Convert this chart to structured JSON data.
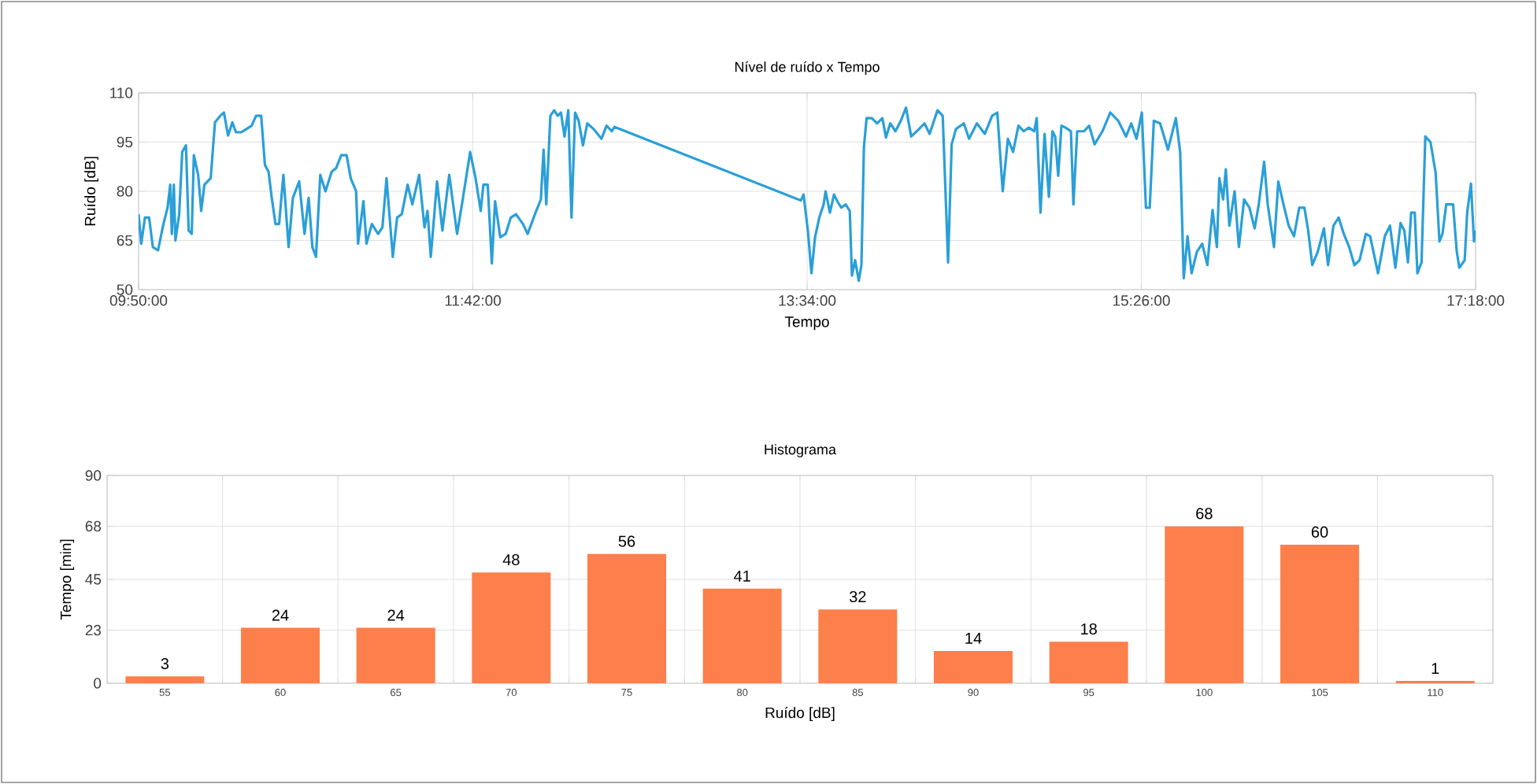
{
  "chart_data": [
    {
      "type": "line",
      "title": "Nível de ruído x Tempo",
      "xlabel": "Tempo",
      "ylabel": "Ruído [dB]",
      "xlim": [
        9.8333,
        17.3
      ],
      "ylim": [
        50,
        110
      ],
      "xticks": [
        {
          "value": 9.8333,
          "label": "09:50:00"
        },
        {
          "value": 11.7,
          "label": "11:42:00"
        },
        {
          "value": 13.5667,
          "label": "13:34:00"
        },
        {
          "value": 15.4333,
          "label": "15:26:00"
        },
        {
          "value": 17.3,
          "label": "17:18:00"
        }
      ],
      "yticks": [
        50,
        65,
        80,
        95,
        110
      ],
      "grid": true,
      "series": [
        {
          "color": "#2a9fd8",
          "x": [
            9.8333,
            9.848,
            9.869,
            9.892,
            9.913,
            9.942,
            9.972,
            9.995,
            10.01,
            10.019,
            10.03,
            10.039,
            10.06,
            10.077,
            10.098,
            10.113,
            10.13,
            10.142,
            10.166,
            10.183,
            10.201,
            10.236,
            10.26,
            10.289,
            10.31,
            10.333,
            10.357,
            10.377,
            10.407,
            10.436,
            10.465,
            10.489,
            10.518,
            10.539,
            10.559,
            10.577,
            10.598,
            10.618,
            10.642,
            10.671,
            10.695,
            10.73,
            10.76,
            10.783,
            10.804,
            10.824,
            10.848,
            10.877,
            10.912,
            10.936,
            10.965,
            10.995,
            11.018,
            11.048,
            11.059,
            11.089,
            11.106,
            11.136,
            11.171,
            11.195,
            11.218,
            11.253,
            11.277,
            11.303,
            11.336,
            11.362,
            11.4,
            11.43,
            11.447,
            11.465,
            11.5,
            11.53,
            11.568,
            11.612,
            11.642,
            11.685,
            11.715,
            11.744,
            11.759,
            11.783,
            11.806,
            11.824,
            11.853,
            11.883,
            11.912,
            11.941,
            11.98,
            12.006,
            12.05,
            12.08,
            12.095,
            12.11,
            12.133,
            12.154,
            12.174,
            12.192,
            12.212,
            12.233,
            12.251,
            12.271,
            12.291,
            12.315,
            12.339,
            12.374,
            12.418,
            12.447,
            12.476,
            12.491,
            13.532,
            13.547,
            13.571,
            13.591,
            13.611,
            13.635,
            13.659,
            13.67,
            13.694,
            13.717,
            13.738,
            13.758,
            13.782,
            13.805,
            13.817,
            13.835,
            13.855,
            13.87,
            13.884,
            13.899,
            13.928,
            13.958,
            13.987,
            14.007,
            14.031,
            14.06,
            14.09,
            14.119,
            14.148,
            14.192,
            14.222,
            14.251,
            14.295,
            14.324,
            14.354,
            14.374,
            14.398,
            14.442,
            14.471,
            14.515,
            14.559,
            14.6,
            14.629,
            14.659,
            14.688,
            14.717,
            14.747,
            14.776,
            14.805,
            14.835,
            14.849,
            14.87,
            14.893,
            14.917,
            14.937,
            14.952,
            14.969,
            14.987,
            15.01,
            15.04,
            15.054,
            15.075,
            15.113,
            15.142,
            15.172,
            15.216,
            15.26,
            15.304,
            15.348,
            15.377,
            15.406,
            15.436,
            15.459,
            15.48,
            15.503,
            15.538,
            15.582,
            15.626,
            15.65,
            15.67,
            15.691,
            15.714,
            15.743,
            15.773,
            15.802,
            15.831,
            15.855,
            15.869,
            15.89,
            15.905,
            15.925,
            15.954,
            15.978,
            16.007,
            16.037,
            16.066,
            16.089,
            16.119,
            16.139,
            16.174,
            16.198,
            16.227,
            16.256,
            16.286,
            16.315,
            16.344,
            16.365,
            16.388,
            16.418,
            16.453,
            16.476,
            16.506,
            16.535,
            16.564,
            16.594,
            16.623,
            16.652,
            16.687,
            16.711,
            16.755,
            16.793,
            16.822,
            16.852,
            16.881,
            16.902,
            16.922,
            16.94,
            16.96,
            16.975,
            16.998,
            17.019,
            17.048,
            17.077,
            17.098,
            17.115,
            17.136,
            17.174,
            17.195,
            17.209,
            17.239,
            17.253,
            17.274,
            17.291,
            17.3
          ],
          "values": [
            73,
            64,
            72,
            72,
            63,
            62,
            70,
            75,
            82,
            67,
            82,
            65,
            73,
            92,
            94,
            68,
            67,
            91,
            85,
            74,
            82,
            84,
            101,
            103,
            104,
            97,
            101,
            98,
            98,
            99,
            100,
            103,
            103,
            88,
            86,
            78,
            70,
            70,
            85,
            63,
            78,
            83,
            67,
            78,
            63,
            60,
            85,
            80,
            86,
            87,
            91,
            91,
            84,
            80,
            64,
            77,
            64,
            70,
            67,
            69,
            84,
            60,
            72,
            73,
            82,
            76,
            85,
            69,
            74,
            60,
            83,
            68,
            85,
            67,
            77,
            92,
            84,
            74,
            82,
            82,
            58,
            77,
            66,
            67,
            72,
            73,
            70,
            67,
            73.5,
            77.5,
            92.7,
            76,
            103,
            104.7,
            103,
            104,
            96.7,
            104.7,
            72,
            104,
            101.5,
            94,
            100.7,
            99,
            96,
            100,
            98.3,
            99.6,
            77.2,
            79,
            68,
            55,
            66,
            72,
            76,
            80,
            73.5,
            79,
            76.7,
            75,
            76,
            74,
            54.3,
            59,
            52.7,
            57.5,
            93.5,
            102.3,
            102.3,
            100.7,
            102.3,
            96.4,
            100.7,
            98.3,
            101.5,
            105.5,
            96.7,
            99,
            100.7,
            97.5,
            104.7,
            103,
            58.3,
            94.3,
            99,
            100.7,
            96,
            100.7,
            97.5,
            103,
            104,
            80,
            96,
            92,
            100,
            98.3,
            99.4,
            98.3,
            102.3,
            73.5,
            97.5,
            78.3,
            98.3,
            96.7,
            84.7,
            100,
            99.4,
            98.3,
            76,
            98.3,
            98.3,
            100,
            94.3,
            98.3,
            104,
            101.5,
            96.7,
            100.7,
            96,
            104,
            75,
            75,
            101.5,
            100.7,
            92.7,
            102.3,
            92,
            53.5,
            66.3,
            55,
            61.5,
            64,
            57.5,
            74.3,
            63,
            84,
            77.5,
            86.7,
            69.5,
            80,
            63,
            77.5,
            75,
            68.7,
            76,
            89,
            76,
            63,
            83,
            76,
            69.5,
            66.3,
            75,
            75,
            68,
            57.5,
            61.5,
            68.7,
            57.5,
            69.5,
            72,
            67,
            63,
            57.5,
            59,
            67,
            66.3,
            55,
            66.3,
            69.5,
            56.7,
            70.3,
            68,
            58.3,
            73.5,
            73.5,
            55,
            58.3,
            96.7,
            95,
            85.5,
            64.7,
            67,
            76,
            76,
            61.5,
            56.7,
            59,
            73.5,
            82.3,
            64.7,
            68
          ]
        }
      ]
    },
    {
      "type": "bar",
      "title": "Histograma",
      "xlabel": "Ruído [dB]",
      "ylabel": "Tempo [min]",
      "categories": [
        "55",
        "60",
        "65",
        "70",
        "75",
        "80",
        "85",
        "90",
        "95",
        "100",
        "105",
        "110"
      ],
      "ylim": [
        0,
        90
      ],
      "yticks": [
        0,
        23,
        45,
        68,
        90
      ],
      "grid": true,
      "data_labels": true,
      "series": [
        {
          "color": "#fd7f4b",
          "values": [
            3,
            24,
            24,
            48,
            56,
            41,
            32,
            14,
            18,
            68,
            60,
            1
          ]
        }
      ]
    }
  ]
}
